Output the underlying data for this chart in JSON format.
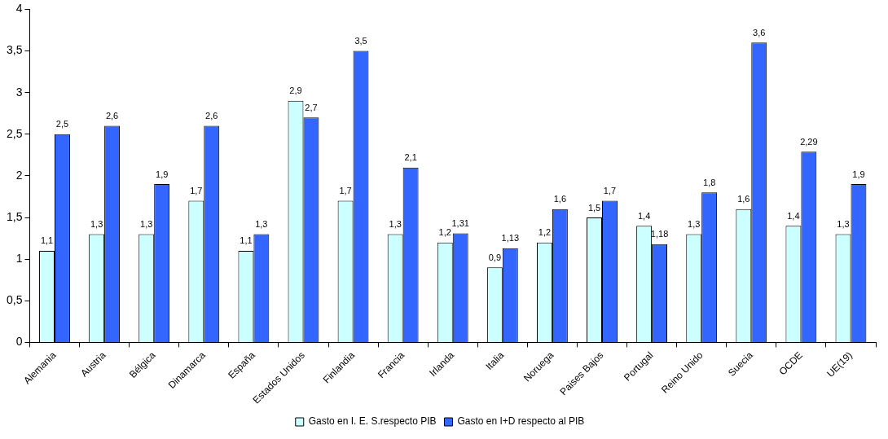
{
  "chart_data": {
    "type": "bar",
    "categories": [
      "Alemania",
      "Austria",
      "Bélgica",
      "Dinamarca",
      "España",
      "Estados Unidos",
      "Finlandia",
      "Francia",
      "Irlanda",
      "Italia",
      "Noruega",
      "Paises Bajos",
      "Portugal",
      "Reino Unido",
      "Suecia",
      "OCDE",
      "UE(19)"
    ],
    "series": [
      {
        "name": "Gasto en I. E. S.respecto PIB",
        "color": "#ccffff",
        "values": [
          1.1,
          1.3,
          1.3,
          1.7,
          1.1,
          2.9,
          1.7,
          1.3,
          1.2,
          0.9,
          1.2,
          1.5,
          1.4,
          1.3,
          1.6,
          1.4,
          1.3
        ],
        "value_labels": [
          "1,1",
          "1,3",
          "1,3",
          "1,7",
          "1,1",
          "2,9",
          "1,7",
          "1,3",
          "1,2",
          "0,9",
          "1,2",
          "1,5",
          "1,4",
          "1,3",
          "1,6",
          "1,4",
          "1,3"
        ]
      },
      {
        "name": "Gasto en I+D respecto al PIB",
        "color": "#3366ff",
        "values": [
          2.5,
          2.6,
          1.9,
          2.6,
          1.3,
          2.7,
          3.5,
          2.1,
          1.31,
          1.13,
          1.6,
          1.7,
          1.18,
          1.8,
          3.6,
          2.29,
          1.9
        ],
        "value_labels": [
          "2,5",
          "2,6",
          "1,9",
          "2,6",
          "1,3",
          "2,7",
          "3,5",
          "2,1",
          "1,31",
          "1,13",
          "1,6",
          "1,7",
          "1,18",
          "1,8",
          "3,6",
          "2,29",
          "1,9"
        ]
      }
    ],
    "ylim": [
      0,
      4
    ],
    "yticks": [
      0,
      {
        "value": 0.5,
        "label": "0,5"
      },
      1,
      {
        "value": 1.5,
        "label": "1,5"
      },
      2,
      {
        "value": 2.5,
        "label": "2,5"
      },
      3,
      {
        "value": 3.5,
        "label": "3,5"
      },
      4
    ],
    "grid": false,
    "legend": "bottom"
  }
}
